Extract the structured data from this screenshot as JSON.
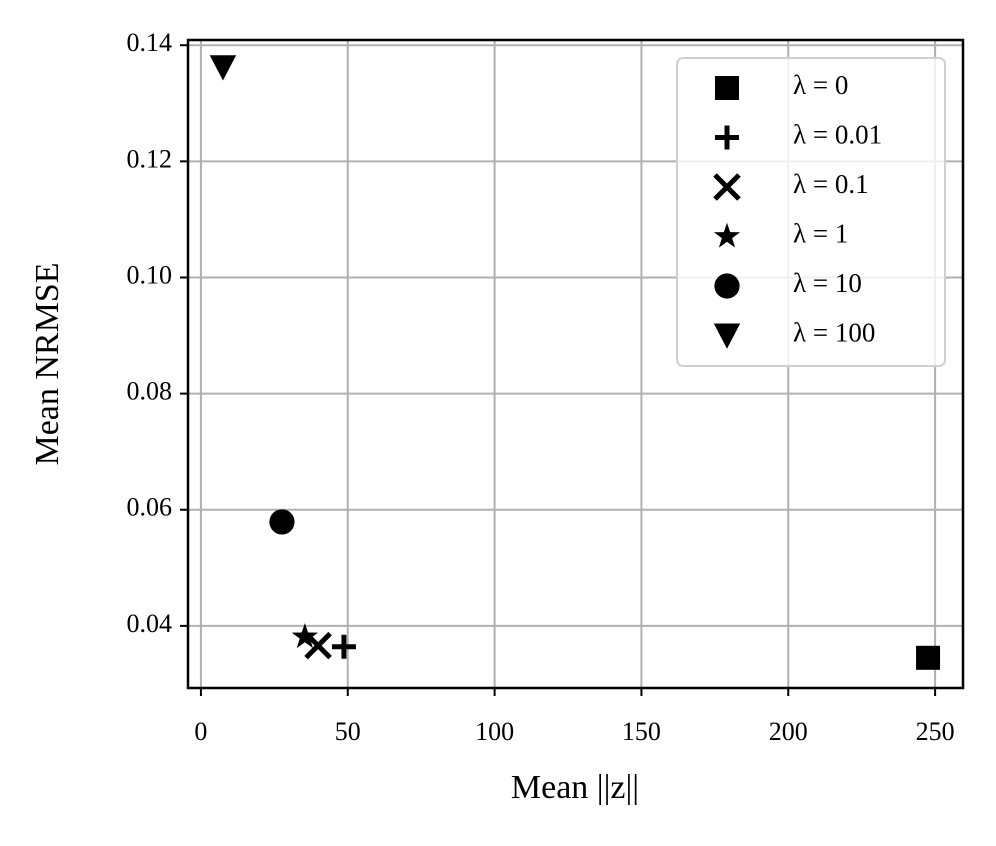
{
  "chart_data": {
    "type": "scatter",
    "x_label": "Mean ||z||",
    "y_label": "Mean NRMSE",
    "xlim": [
      -4.4,
      259.5
    ],
    "ylim": [
      0.0293,
      0.1409
    ],
    "xticks": [
      0,
      50,
      100,
      150,
      200,
      250
    ],
    "yticks": [
      {
        "value": 0.04,
        "label": "0.04"
      },
      {
        "value": 0.06,
        "label": "0.06"
      },
      {
        "value": 0.08,
        "label": "0.08"
      },
      {
        "value": 0.1,
        "label": "0.10"
      },
      {
        "value": 0.12,
        "label": "0.12"
      },
      {
        "value": 0.14,
        "label": "0.14"
      }
    ],
    "grid": true,
    "legend": "upper right",
    "series": [
      {
        "name": "λ = 0",
        "marker": "square",
        "color": "#000000",
        "x": [
          247.6
        ],
        "values": [
          0.0345
        ]
      },
      {
        "name": "λ = 0.01",
        "marker": "plus",
        "color": "#000000",
        "x": [
          48.7
        ],
        "values": [
          0.0364
        ]
      },
      {
        "name": "λ = 0.1",
        "marker": "x",
        "color": "#000000",
        "x": [
          39.9
        ],
        "values": [
          0.0366
        ]
      },
      {
        "name": "λ = 1",
        "marker": "star",
        "color": "#000000",
        "x": [
          35.4
        ],
        "values": [
          0.0381
        ]
      },
      {
        "name": "λ = 10",
        "marker": "circle",
        "color": "#000000",
        "x": [
          27.6
        ],
        "values": [
          0.0579
        ]
      },
      {
        "name": "λ = 100",
        "marker": "triangle_down",
        "color": "#000000",
        "x": [
          7.5
        ],
        "values": [
          0.1362
        ]
      }
    ]
  }
}
